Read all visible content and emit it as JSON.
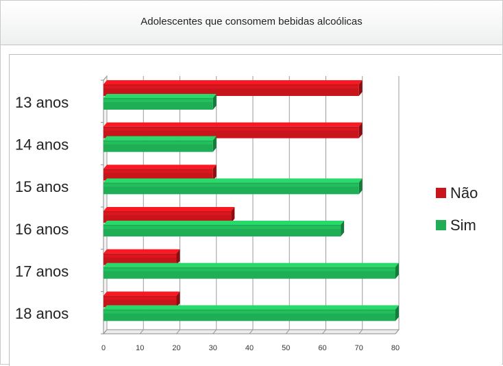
{
  "chart_data": {
    "type": "bar",
    "orientation": "horizontal",
    "title": "Adolescentes que consomem bebidas alcoólicas",
    "categories": [
      "13 anos",
      "14 anos",
      "15 anos",
      "16 anos",
      "17 anos",
      "18 anos"
    ],
    "series": [
      {
        "name": "Não",
        "color": "#c8141b",
        "values": [
          70,
          70,
          30,
          35,
          20,
          20
        ]
      },
      {
        "name": "Sim",
        "color": "#1fae55",
        "values": [
          30,
          30,
          70,
          65,
          80,
          80
        ]
      }
    ],
    "xlim": [
      0,
      80
    ],
    "xticks": [
      "0",
      "10",
      "20",
      "30",
      "40",
      "50",
      "60",
      "70",
      "80"
    ],
    "grid": true,
    "legend_position": "right"
  }
}
